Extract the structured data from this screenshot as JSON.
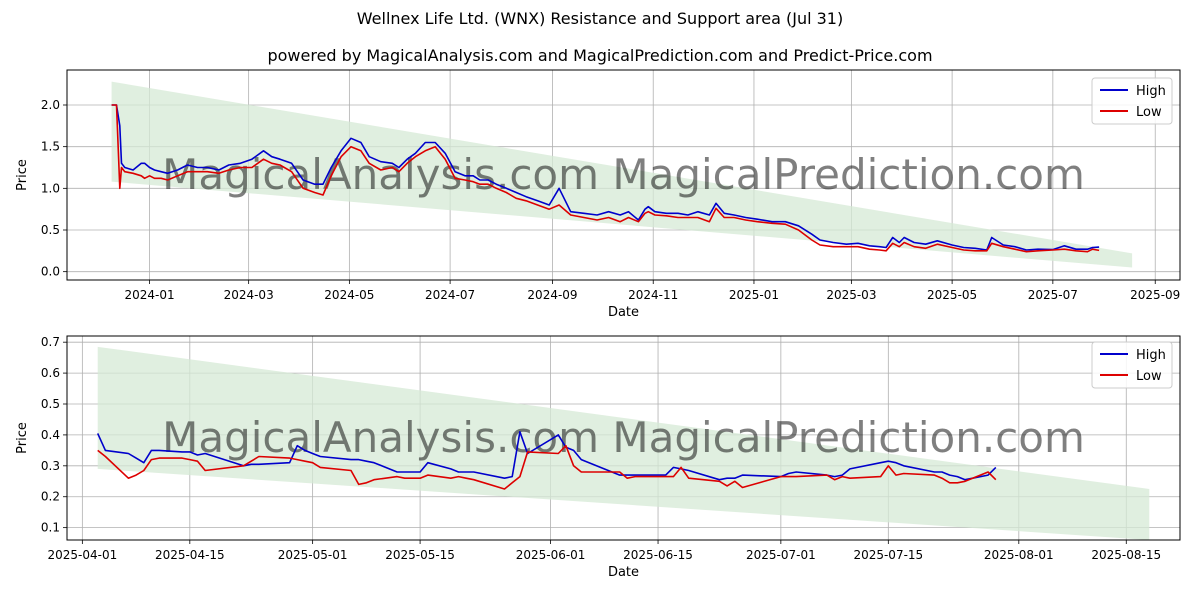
{
  "title": "Wellnex Life Ltd. (WNX) Resistance and Support area (Jul 31)",
  "subtitle": "powered by MagicalAnalysis.com and MagicalPrediction.com and Predict-Price.com",
  "watermark": "MagicalAnalysis.com   MagicalPrediction.com",
  "colors": {
    "high": "#0000cc",
    "low": "#dd0000",
    "band": "#d5ead5",
    "grid": "#b0b0b0"
  },
  "chart_data": [
    {
      "type": "line",
      "xlabel": "Date",
      "ylabel": "Price",
      "xlim": [
        "2023-11-12",
        "2025-09-16"
      ],
      "ylim": [
        -0.1,
        2.42
      ],
      "grid": true,
      "legend": "top-right",
      "x_ticks": [
        "2024-01",
        "2024-03",
        "2024-05",
        "2024-07",
        "2024-09",
        "2024-11",
        "2025-01",
        "2025-03",
        "2025-05",
        "2025-07",
        "2025-09"
      ],
      "y_ticks": [
        "0.0",
        "0.5",
        "1.0",
        "1.5",
        "2.0"
      ],
      "band": {
        "x": [
          "2023-12-09",
          "2025-08-18"
        ],
        "upper": [
          2.28,
          0.22
        ],
        "lower": [
          1.08,
          0.05
        ]
      },
      "series": [
        {
          "name": "High",
          "x": [
            "2023-12-09",
            "2023-12-12",
            "2023-12-14",
            "2023-12-15",
            "2023-12-17",
            "2023-12-22",
            "2023-12-27",
            "2023-12-29",
            "2024-01-01",
            "2024-01-04",
            "2024-01-08",
            "2024-01-12",
            "2024-01-18",
            "2024-01-24",
            "2024-01-30",
            "2024-02-05",
            "2024-02-12",
            "2024-02-18",
            "2024-02-25",
            "2024-03-03",
            "2024-03-10",
            "2024-03-15",
            "2024-03-20",
            "2024-03-27",
            "2024-04-03",
            "2024-04-10",
            "2024-04-15",
            "2024-04-20",
            "2024-04-26",
            "2024-05-02",
            "2024-05-08",
            "2024-05-13",
            "2024-05-20",
            "2024-05-27",
            "2024-05-31",
            "2024-06-05",
            "2024-06-10",
            "2024-06-16",
            "2024-06-22",
            "2024-06-28",
            "2024-07-04",
            "2024-07-10",
            "2024-07-15",
            "2024-07-19",
            "2024-07-24",
            "2024-07-29",
            "2024-08-04",
            "2024-08-10",
            "2024-08-16",
            "2024-08-23",
            "2024-08-30",
            "2024-09-05",
            "2024-09-12",
            "2024-09-20",
            "2024-09-28",
            "2024-10-05",
            "2024-10-12",
            "2024-10-17",
            "2024-10-23",
            "2024-10-27",
            "2024-10-29",
            "2024-11-02",
            "2024-11-09",
            "2024-11-16",
            "2024-11-22",
            "2024-11-28",
            "2024-12-05",
            "2024-12-09",
            "2024-12-14",
            "2024-12-20",
            "2024-12-27",
            "2025-01-03",
            "2025-01-12",
            "2025-01-20",
            "2025-01-28",
            "2025-02-05",
            "2025-02-10",
            "2025-02-18",
            "2025-02-26",
            "2025-03-05",
            "2025-03-12",
            "2025-03-18",
            "2025-03-22",
            "2025-03-26",
            "2025-03-30",
            "2025-04-02",
            "2025-04-08",
            "2025-04-15",
            "2025-04-22",
            "2025-05-01",
            "2025-05-08",
            "2025-05-15",
            "2025-05-22",
            "2025-05-25",
            "2025-06-01",
            "2025-06-08",
            "2025-06-15",
            "2025-06-22",
            "2025-07-01",
            "2025-07-08",
            "2025-07-15",
            "2025-07-22",
            "2025-07-25",
            "2025-07-29"
          ],
          "values": [
            2.0,
            2.0,
            1.75,
            1.3,
            1.25,
            1.22,
            1.3,
            1.3,
            1.25,
            1.22,
            1.2,
            1.18,
            1.22,
            1.28,
            1.25,
            1.25,
            1.22,
            1.28,
            1.3,
            1.35,
            1.45,
            1.38,
            1.35,
            1.3,
            1.1,
            1.05,
            1.05,
            1.25,
            1.45,
            1.6,
            1.55,
            1.38,
            1.32,
            1.3,
            1.25,
            1.35,
            1.42,
            1.55,
            1.55,
            1.42,
            1.2,
            1.15,
            1.15,
            1.1,
            1.1,
            1.05,
            1.0,
            0.95,
            0.9,
            0.85,
            0.8,
            1.0,
            0.72,
            0.7,
            0.68,
            0.72,
            0.68,
            0.72,
            0.62,
            0.75,
            0.78,
            0.72,
            0.7,
            0.7,
            0.68,
            0.72,
            0.68,
            0.82,
            0.7,
            0.68,
            0.65,
            0.63,
            0.6,
            0.6,
            0.55,
            0.45,
            0.38,
            0.35,
            0.33,
            0.34,
            0.31,
            0.3,
            0.29,
            0.41,
            0.35,
            0.41,
            0.35,
            0.33,
            0.37,
            0.32,
            0.29,
            0.28,
            0.26,
            0.41,
            0.32,
            0.3,
            0.26,
            0.27,
            0.265,
            0.31,
            0.27,
            0.27,
            0.29,
            0.295
          ]
        },
        {
          "name": "Low",
          "x": [
            "2023-12-09",
            "2023-12-12",
            "2023-12-14",
            "2023-12-15",
            "2023-12-17",
            "2023-12-22",
            "2023-12-27",
            "2023-12-29",
            "2024-01-01",
            "2024-01-04",
            "2024-01-08",
            "2024-01-12",
            "2024-01-18",
            "2024-01-24",
            "2024-01-30",
            "2024-02-05",
            "2024-02-12",
            "2024-02-18",
            "2024-02-25",
            "2024-03-03",
            "2024-03-10",
            "2024-03-15",
            "2024-03-20",
            "2024-03-27",
            "2024-04-03",
            "2024-04-10",
            "2024-04-15",
            "2024-04-20",
            "2024-04-26",
            "2024-05-02",
            "2024-05-08",
            "2024-05-13",
            "2024-05-20",
            "2024-05-27",
            "2024-05-31",
            "2024-06-05",
            "2024-06-10",
            "2024-06-16",
            "2024-06-22",
            "2024-06-28",
            "2024-07-04",
            "2024-07-10",
            "2024-07-15",
            "2024-07-19",
            "2024-07-24",
            "2024-07-29",
            "2024-08-04",
            "2024-08-10",
            "2024-08-16",
            "2024-08-23",
            "2024-08-30",
            "2024-09-05",
            "2024-09-12",
            "2024-09-20",
            "2024-09-28",
            "2024-10-05",
            "2024-10-12",
            "2024-10-17",
            "2024-10-23",
            "2024-10-27",
            "2024-10-29",
            "2024-11-02",
            "2024-11-09",
            "2024-11-16",
            "2024-11-22",
            "2024-11-28",
            "2024-12-05",
            "2024-12-09",
            "2024-12-14",
            "2024-12-20",
            "2024-12-27",
            "2025-01-03",
            "2025-01-12",
            "2025-01-20",
            "2025-01-28",
            "2025-02-05",
            "2025-02-10",
            "2025-02-18",
            "2025-02-26",
            "2025-03-05",
            "2025-03-12",
            "2025-03-18",
            "2025-03-22",
            "2025-03-26",
            "2025-03-30",
            "2025-04-02",
            "2025-04-08",
            "2025-04-15",
            "2025-04-22",
            "2025-05-01",
            "2025-05-08",
            "2025-05-15",
            "2025-05-22",
            "2025-05-25",
            "2025-06-01",
            "2025-06-08",
            "2025-06-15",
            "2025-06-22",
            "2025-07-01",
            "2025-07-08",
            "2025-07-15",
            "2025-07-22",
            "2025-07-25",
            "2025-07-29"
          ],
          "values": [
            2.0,
            2.0,
            1.0,
            1.25,
            1.2,
            1.18,
            1.15,
            1.12,
            1.15,
            1.12,
            1.12,
            1.1,
            1.15,
            1.2,
            1.2,
            1.2,
            1.18,
            1.22,
            1.25,
            1.25,
            1.35,
            1.3,
            1.28,
            1.2,
            1.0,
            0.95,
            0.92,
            1.15,
            1.38,
            1.5,
            1.45,
            1.3,
            1.22,
            1.25,
            1.2,
            1.3,
            1.38,
            1.45,
            1.5,
            1.35,
            1.12,
            1.1,
            1.08,
            1.05,
            1.05,
            1.0,
            0.95,
            0.88,
            0.85,
            0.8,
            0.75,
            0.8,
            0.68,
            0.65,
            0.62,
            0.65,
            0.6,
            0.65,
            0.6,
            0.7,
            0.72,
            0.68,
            0.67,
            0.65,
            0.65,
            0.65,
            0.6,
            0.76,
            0.65,
            0.65,
            0.62,
            0.6,
            0.58,
            0.57,
            0.5,
            0.38,
            0.32,
            0.3,
            0.3,
            0.3,
            0.27,
            0.26,
            0.25,
            0.34,
            0.3,
            0.35,
            0.3,
            0.28,
            0.33,
            0.29,
            0.26,
            0.25,
            0.25,
            0.34,
            0.3,
            0.27,
            0.24,
            0.25,
            0.26,
            0.27,
            0.25,
            0.24,
            0.27,
            0.255
          ]
        }
      ]
    },
    {
      "type": "line",
      "xlabel": "Date",
      "ylabel": "Price",
      "xlim": [
        "2025-03-30",
        "2025-08-22"
      ],
      "ylim": [
        0.06,
        0.72
      ],
      "grid": true,
      "legend": "top-right",
      "x_ticks": [
        "2025-04-01",
        "2025-04-15",
        "2025-05-01",
        "2025-05-15",
        "2025-06-01",
        "2025-06-15",
        "2025-07-01",
        "2025-07-15",
        "2025-08-01",
        "2025-08-15"
      ],
      "y_ticks": [
        "0.1",
        "0.2",
        "0.3",
        "0.4",
        "0.5",
        "0.6",
        "0.7"
      ],
      "band": {
        "x": [
          "2025-04-03",
          "2025-08-18"
        ],
        "upper": [
          0.685,
          0.225
        ],
        "lower": [
          0.29,
          0.06
        ]
      },
      "series": [
        {
          "name": "High",
          "x": [
            "2025-04-03",
            "2025-04-04",
            "2025-04-07",
            "2025-04-08",
            "2025-04-09",
            "2025-04-10",
            "2025-04-11",
            "2025-04-14",
            "2025-04-15",
            "2025-04-16",
            "2025-04-17",
            "2025-04-22",
            "2025-04-23",
            "2025-04-24",
            "2025-04-28",
            "2025-04-29",
            "2025-04-30",
            "2025-05-01",
            "2025-05-02",
            "2025-05-06",
            "2025-05-07",
            "2025-05-08",
            "2025-05-09",
            "2025-05-12",
            "2025-05-13",
            "2025-05-14",
            "2025-05-15",
            "2025-05-16",
            "2025-05-19",
            "2025-05-20",
            "2025-05-21",
            "2025-05-22",
            "2025-05-26",
            "2025-05-27",
            "2025-05-28",
            "2025-05-29",
            "2025-06-02",
            "2025-06-03",
            "2025-06-04",
            "2025-06-05",
            "2025-06-10",
            "2025-06-11",
            "2025-06-12",
            "2025-06-16",
            "2025-06-17",
            "2025-06-18",
            "2025-06-19",
            "2025-06-23",
            "2025-06-24",
            "2025-06-25",
            "2025-06-26",
            "2025-07-01",
            "2025-07-02",
            "2025-07-03",
            "2025-07-07",
            "2025-07-08",
            "2025-07-09",
            "2025-07-10",
            "2025-07-14",
            "2025-07-15",
            "2025-07-16",
            "2025-07-17",
            "2025-07-21",
            "2025-07-22",
            "2025-07-23",
            "2025-07-24",
            "2025-07-25",
            "2025-07-28",
            "2025-07-29"
          ],
          "values": [
            0.405,
            0.35,
            0.34,
            0.325,
            0.31,
            0.35,
            0.35,
            0.345,
            0.345,
            0.335,
            0.34,
            0.3,
            0.305,
            0.305,
            0.31,
            0.365,
            0.35,
            0.34,
            0.33,
            0.32,
            0.32,
            0.315,
            0.31,
            0.28,
            0.28,
            0.28,
            0.28,
            0.31,
            0.29,
            0.28,
            0.28,
            0.28,
            0.26,
            0.265,
            0.41,
            0.34,
            0.4,
            0.36,
            0.35,
            0.32,
            0.27,
            0.27,
            0.27,
            0.27,
            0.295,
            0.29,
            0.285,
            0.255,
            0.26,
            0.26,
            0.27,
            0.265,
            0.275,
            0.28,
            0.27,
            0.265,
            0.27,
            0.29,
            0.31,
            0.315,
            0.31,
            0.3,
            0.28,
            0.28,
            0.27,
            0.265,
            0.255,
            0.27,
            0.295
          ]
        },
        {
          "name": "Low",
          "x": [
            "2025-04-03",
            "2025-04-04",
            "2025-04-07",
            "2025-04-08",
            "2025-04-09",
            "2025-04-10",
            "2025-04-11",
            "2025-04-14",
            "2025-04-15",
            "2025-04-16",
            "2025-04-17",
            "2025-04-22",
            "2025-04-23",
            "2025-04-24",
            "2025-04-28",
            "2025-04-29",
            "2025-04-30",
            "2025-05-01",
            "2025-05-02",
            "2025-05-06",
            "2025-05-07",
            "2025-05-08",
            "2025-05-09",
            "2025-05-12",
            "2025-05-13",
            "2025-05-14",
            "2025-05-15",
            "2025-05-16",
            "2025-05-19",
            "2025-05-20",
            "2025-05-21",
            "2025-05-22",
            "2025-05-26",
            "2025-05-27",
            "2025-05-28",
            "2025-05-29",
            "2025-06-02",
            "2025-06-03",
            "2025-06-04",
            "2025-06-05",
            "2025-06-10",
            "2025-06-11",
            "2025-06-12",
            "2025-06-16",
            "2025-06-17",
            "2025-06-18",
            "2025-06-19",
            "2025-06-23",
            "2025-06-24",
            "2025-06-25",
            "2025-06-26",
            "2025-07-01",
            "2025-07-02",
            "2025-07-03",
            "2025-07-07",
            "2025-07-08",
            "2025-07-09",
            "2025-07-10",
            "2025-07-14",
            "2025-07-15",
            "2025-07-16",
            "2025-07-17",
            "2025-07-21",
            "2025-07-22",
            "2025-07-23",
            "2025-07-24",
            "2025-07-25",
            "2025-07-28",
            "2025-07-29"
          ],
          "values": [
            0.35,
            0.33,
            0.26,
            0.27,
            0.285,
            0.32,
            0.325,
            0.325,
            0.32,
            0.315,
            0.285,
            0.3,
            0.315,
            0.33,
            0.325,
            0.32,
            0.315,
            0.31,
            0.295,
            0.285,
            0.24,
            0.245,
            0.255,
            0.265,
            0.26,
            0.26,
            0.26,
            0.27,
            0.26,
            0.265,
            0.26,
            0.255,
            0.225,
            0.245,
            0.265,
            0.345,
            0.34,
            0.365,
            0.3,
            0.28,
            0.28,
            0.26,
            0.265,
            0.265,
            0.265,
            0.295,
            0.26,
            0.25,
            0.235,
            0.25,
            0.23,
            0.265,
            0.265,
            0.265,
            0.27,
            0.255,
            0.265,
            0.26,
            0.265,
            0.3,
            0.27,
            0.275,
            0.27,
            0.26,
            0.245,
            0.245,
            0.25,
            0.28,
            0.255
          ]
        }
      ]
    }
  ]
}
